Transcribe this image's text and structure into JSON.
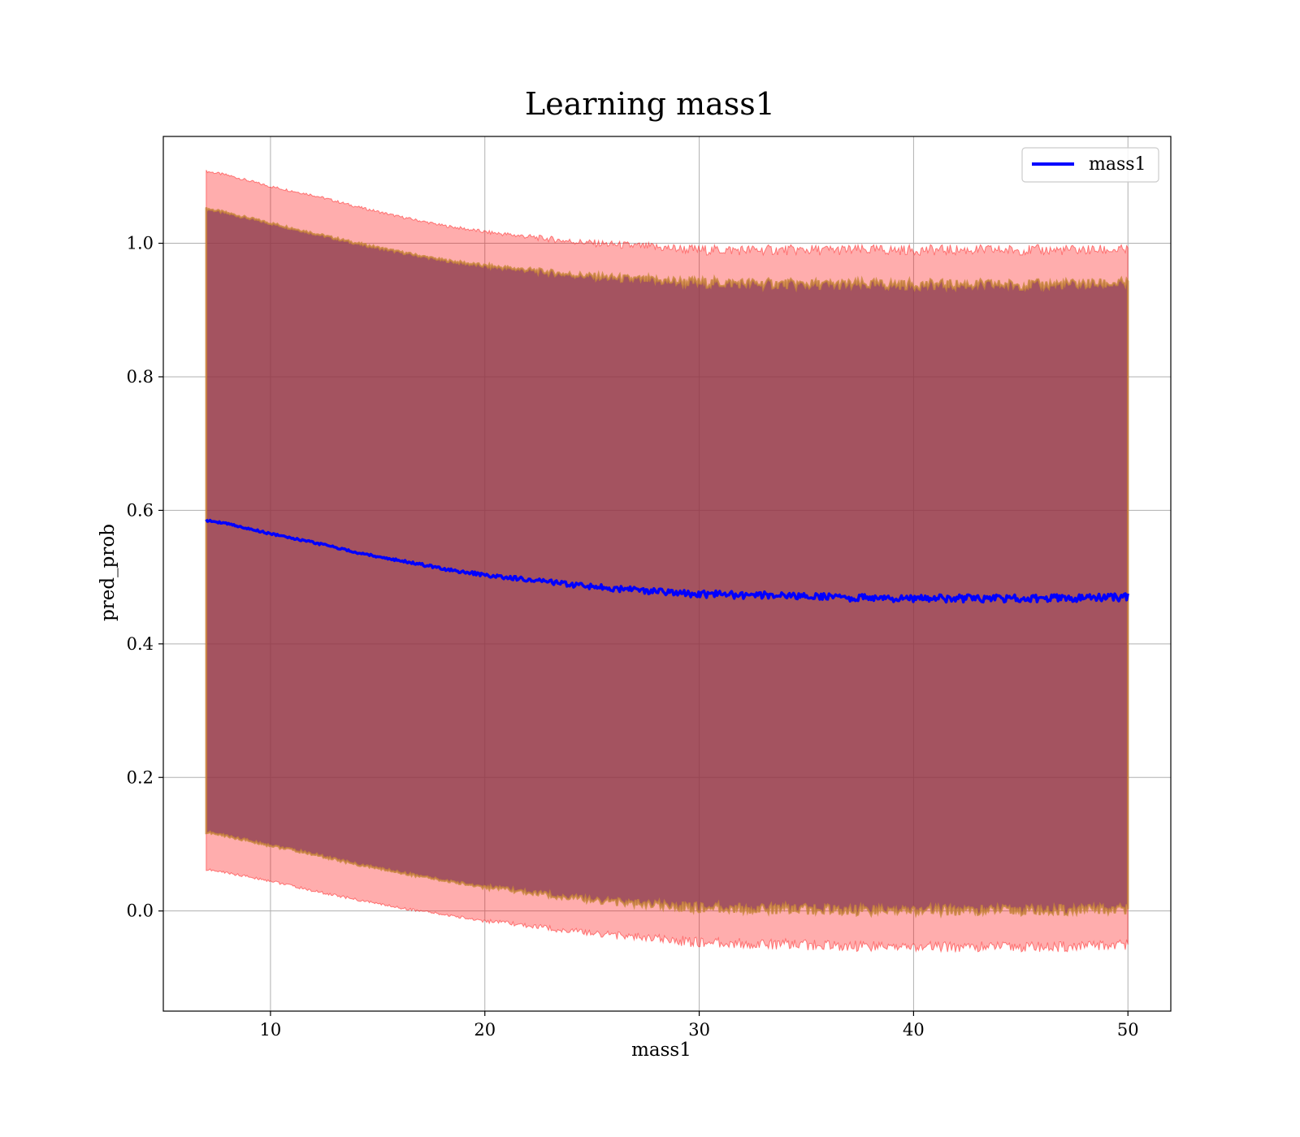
{
  "chart_data": {
    "type": "line",
    "title": "Learning mass1",
    "xlabel": "mass1",
    "ylabel": "pred_prob",
    "xlim": [
      5,
      52
    ],
    "ylim": [
      -0.15,
      1.16
    ],
    "xticks": [
      10,
      20,
      30,
      40,
      50
    ],
    "yticks": [
      0.0,
      0.2,
      0.4,
      0.6,
      0.8,
      1.0
    ],
    "grid": true,
    "legend": {
      "placement": "top-right",
      "entries": [
        "mass1"
      ]
    },
    "colors": {
      "line": "#0000ff",
      "outer_band": "#ff0000",
      "inner_band": "#8b3a4a",
      "inner_edge": "#c8863a",
      "grid": "#b0b0b0"
    },
    "series": [
      {
        "name": "mass1",
        "x": [
          7,
          8,
          10,
          12,
          14,
          16,
          18,
          20,
          22,
          24,
          26,
          28,
          30,
          32,
          34,
          36,
          38,
          40,
          42,
          44,
          46,
          48,
          50
        ],
        "values": [
          0.585,
          0.58,
          0.565,
          0.552,
          0.537,
          0.525,
          0.513,
          0.503,
          0.496,
          0.489,
          0.483,
          0.478,
          0.475,
          0.473,
          0.472,
          0.47,
          0.469,
          0.468,
          0.468,
          0.468,
          0.468,
          0.469,
          0.47
        ]
      }
    ],
    "bands": [
      {
        "role": "outer",
        "x": [
          7,
          8,
          10,
          12,
          14,
          16,
          18,
          20,
          22,
          24,
          26,
          28,
          30,
          32,
          34,
          36,
          38,
          40,
          42,
          44,
          46,
          48,
          50
        ],
        "upper": [
          1.108,
          1.102,
          1.085,
          1.072,
          1.055,
          1.04,
          1.027,
          1.017,
          1.01,
          1.003,
          0.998,
          0.994,
          0.99,
          0.99,
          0.99,
          0.99,
          0.99,
          0.99,
          0.99,
          0.99,
          0.99,
          0.99,
          0.99
        ],
        "lower": [
          0.062,
          0.057,
          0.045,
          0.03,
          0.017,
          0.005,
          -0.005,
          -0.015,
          -0.022,
          -0.03,
          -0.036,
          -0.042,
          -0.047,
          -0.049,
          -0.05,
          -0.052,
          -0.053,
          -0.054,
          -0.054,
          -0.054,
          -0.054,
          -0.053,
          -0.05
        ]
      },
      {
        "role": "inner",
        "x": [
          7,
          8,
          10,
          12,
          14,
          16,
          18,
          20,
          22,
          24,
          26,
          28,
          30,
          32,
          34,
          36,
          38,
          40,
          42,
          44,
          46,
          48,
          50
        ],
        "upper": [
          1.052,
          1.045,
          1.03,
          1.015,
          1.0,
          0.987,
          0.975,
          0.966,
          0.96,
          0.953,
          0.948,
          0.944,
          0.941,
          0.94,
          0.939,
          0.938,
          0.938,
          0.938,
          0.938,
          0.938,
          0.938,
          0.939,
          0.94
        ],
        "lower": [
          0.118,
          0.112,
          0.098,
          0.085,
          0.07,
          0.058,
          0.046,
          0.036,
          0.028,
          0.02,
          0.014,
          0.009,
          0.005,
          0.004,
          0.003,
          0.002,
          0.001,
          0.001,
          0.001,
          0.001,
          0.001,
          0.002,
          0.003
        ]
      }
    ]
  }
}
